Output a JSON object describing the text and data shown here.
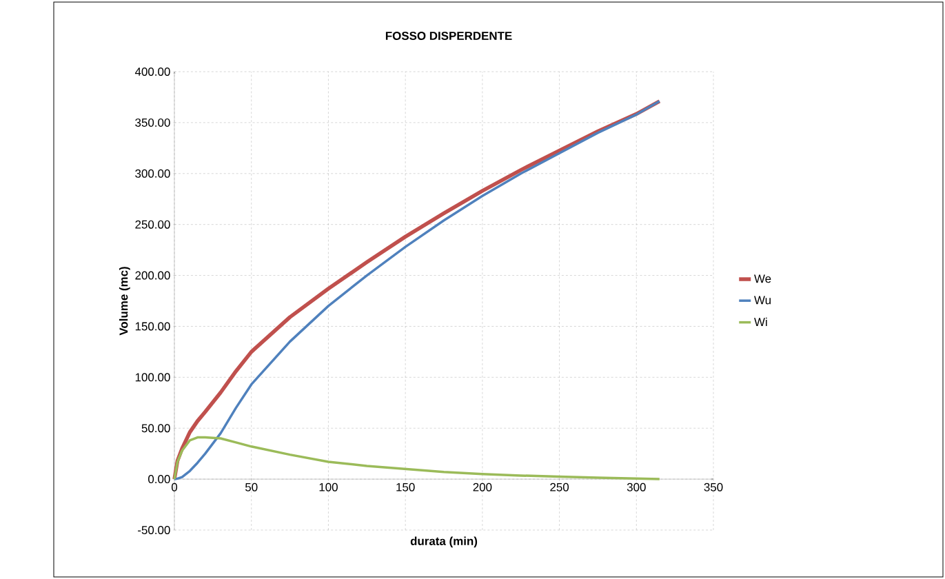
{
  "chart_data": {
    "type": "line",
    "title": "FOSSO DISPERDENTE",
    "xlabel": "durata (min)",
    "ylabel": "Volume (mc)",
    "x": [
      0,
      2,
      5,
      10,
      15,
      20,
      30,
      40,
      50,
      75,
      100,
      125,
      150,
      175,
      200,
      225,
      250,
      275,
      300,
      315
    ],
    "series": [
      {
        "name": "We",
        "color": "#c0504d",
        "values": [
          0,
          18,
          30,
          46,
          57,
          66,
          85,
          106,
          125,
          159,
          187,
          213,
          238,
          261,
          283,
          303.5,
          322.5,
          341.5,
          358.5,
          371
        ]
      },
      {
        "name": "Wu",
        "color": "#4f81bd",
        "values": [
          0,
          0.5,
          2,
          8,
          16,
          25,
          45,
          70,
          93,
          135,
          170,
          200,
          228,
          254,
          278,
          300,
          320,
          340,
          358,
          371
        ]
      },
      {
        "name": "Wi",
        "color": "#9bbb59",
        "values": [
          0,
          17,
          28,
          38,
          41,
          41,
          40,
          36,
          32,
          24,
          17,
          13,
          10,
          7,
          5,
          3.5,
          2.5,
          1.5,
          0.5,
          0
        ]
      }
    ],
    "xlim": [
      0,
      350
    ],
    "ylim": [
      -50,
      400
    ],
    "xticks": [
      0,
      50,
      100,
      150,
      200,
      250,
      300,
      350
    ],
    "yticks": [
      {
        "value": -50,
        "label": "-50.00"
      },
      {
        "value": 0,
        "label": "0.00"
      },
      {
        "value": 50,
        "label": "50.00"
      },
      {
        "value": 100,
        "label": "100.00"
      },
      {
        "value": 150,
        "label": "150.00"
      },
      {
        "value": 200,
        "label": "200.00"
      },
      {
        "value": 250,
        "label": "250.00"
      },
      {
        "value": 300,
        "label": "300.00"
      },
      {
        "value": 350,
        "label": "350.00"
      },
      {
        "value": 400,
        "label": "400.00"
      }
    ],
    "grid": true,
    "legend": "right",
    "line_style": "solid"
  }
}
